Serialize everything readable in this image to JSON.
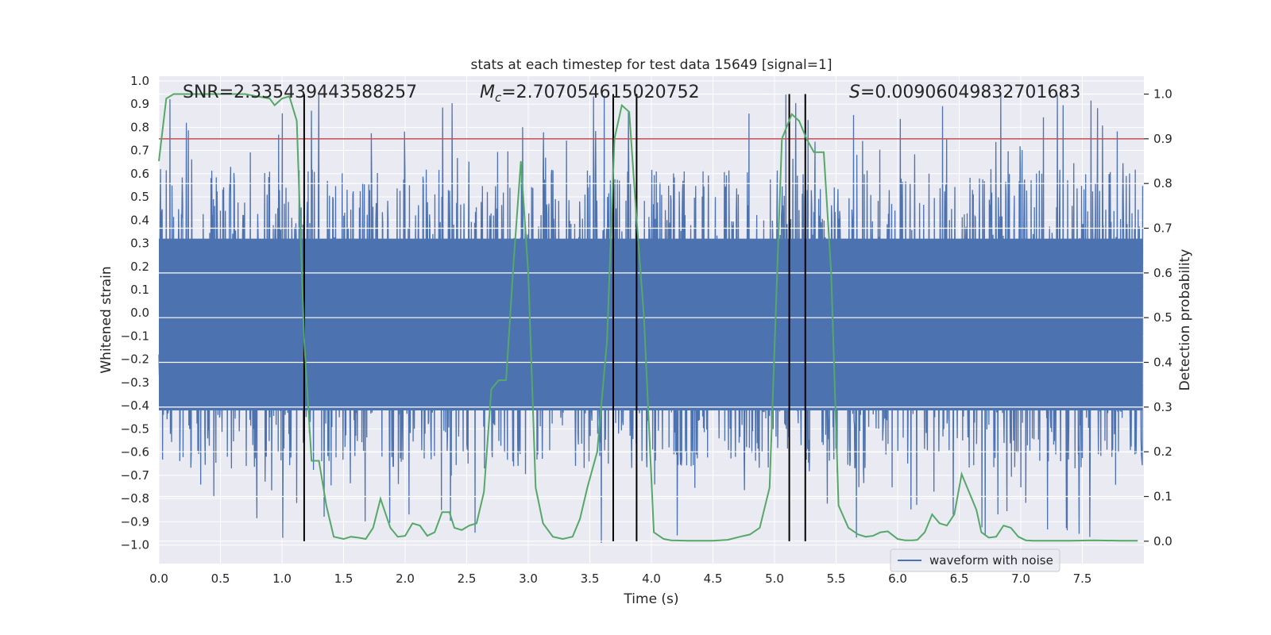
{
  "chart_data": {
    "type": "line",
    "title": "stats at each timestep for test data 15649 [signal=1]",
    "xlabel": "Time (s)",
    "ylabel": "Whitened strain",
    "y2label": "Detection probability",
    "xlim": [
      0.0,
      8.0
    ],
    "ylim": [
      -1.08,
      1.02
    ],
    "y2lim": [
      -0.05,
      1.04
    ],
    "x_ticks": [
      "0.0",
      "0.5",
      "1.0",
      "1.5",
      "2.0",
      "2.5",
      "3.0",
      "3.5",
      "4.0",
      "4.5",
      "5.0",
      "5.5",
      "6.0",
      "6.5",
      "7.0",
      "7.5"
    ],
    "y_ticks": [
      "1.0",
      "0.9",
      "0.8",
      "0.7",
      "0.6",
      "0.5",
      "0.4",
      "0.3",
      "0.2",
      "0.1",
      "0.0",
      "-0.1",
      "-0.2",
      "-0.3",
      "-0.4",
      "-0.5",
      "-0.6",
      "-0.7",
      "-0.8",
      "-0.9",
      "-1.0"
    ],
    "y2_ticks": [
      "1.0",
      "0.9",
      "0.8",
      "0.7",
      "0.6",
      "0.5",
      "0.4",
      "0.3",
      "0.2",
      "0.1",
      "0.0"
    ],
    "grid": true,
    "legend_position": "lower-right",
    "annotations": {
      "snr": "SNR=2.335439443588257",
      "mc_symbol": "M",
      "mc_sub": "c",
      "mc_value": "=2.707054615020752",
      "s_symbol": "S",
      "s_value": "=0.00906049832701683"
    },
    "series": [
      {
        "name": "waveform with noise",
        "color": "#4c72b0",
        "kind": "noise-band",
        "x_range": [
          0.0,
          7.99
        ],
        "core_range": [
          -0.42,
          0.32
        ],
        "extreme_range": [
          -1.0,
          0.95
        ]
      },
      {
        "color": "#55a868",
        "kind": "probability",
        "x": [
          0.0,
          0.06,
          0.12,
          0.2,
          0.3,
          0.4,
          0.5,
          0.6,
          0.7,
          0.8,
          0.9,
          0.94,
          1.0,
          1.06,
          1.12,
          1.18,
          1.24,
          1.3,
          1.36,
          1.42,
          1.5,
          1.56,
          1.62,
          1.68,
          1.74,
          1.8,
          1.88,
          1.94,
          2.0,
          2.06,
          2.12,
          2.18,
          2.24,
          2.3,
          2.36,
          2.4,
          2.46,
          2.52,
          2.58,
          2.64,
          2.7,
          2.76,
          2.82,
          2.88,
          2.94,
          3.0,
          3.06,
          3.12,
          3.2,
          3.28,
          3.36,
          3.42,
          3.48,
          3.56,
          3.64,
          3.7,
          3.76,
          3.82,
          3.88,
          3.94,
          4.02,
          4.1,
          4.16,
          4.3,
          4.5,
          4.62,
          4.72,
          4.8,
          4.88,
          4.96,
          5.06,
          5.14,
          5.2,
          5.26,
          5.32,
          5.4,
          5.46,
          5.52,
          5.6,
          5.68,
          5.74,
          5.8,
          5.86,
          5.92,
          6.0,
          6.06,
          6.12,
          6.16,
          6.22,
          6.28,
          6.34,
          6.4,
          6.46,
          6.52,
          6.58,
          6.64,
          6.68,
          6.74,
          6.8,
          6.86,
          6.92,
          6.98,
          7.04,
          7.1,
          7.2,
          7.4,
          7.6,
          7.8,
          7.95
        ],
        "y": [
          0.85,
          0.99,
          1.0,
          1.0,
          1.0,
          1.0,
          1.0,
          1.0,
          1.0,
          0.995,
          0.99,
          0.975,
          0.99,
          0.995,
          0.94,
          0.45,
          0.18,
          0.18,
          0.08,
          0.01,
          0.005,
          0.01,
          0.008,
          0.005,
          0.03,
          0.095,
          0.03,
          0.01,
          0.012,
          0.04,
          0.035,
          0.012,
          0.02,
          0.065,
          0.065,
          0.03,
          0.025,
          0.035,
          0.04,
          0.11,
          0.34,
          0.36,
          0.36,
          0.62,
          0.85,
          0.6,
          0.12,
          0.04,
          0.01,
          0.005,
          0.01,
          0.05,
          0.12,
          0.2,
          0.45,
          0.9,
          0.975,
          0.96,
          0.72,
          0.5,
          0.02,
          0.005,
          0.002,
          0.001,
          0.001,
          0.003,
          0.01,
          0.015,
          0.03,
          0.12,
          0.9,
          0.955,
          0.94,
          0.9,
          0.87,
          0.87,
          0.6,
          0.08,
          0.03,
          0.015,
          0.01,
          0.012,
          0.02,
          0.022,
          0.005,
          0.002,
          0.002,
          0.003,
          0.02,
          0.06,
          0.04,
          0.035,
          0.06,
          0.15,
          0.11,
          0.07,
          0.02,
          0.008,
          0.01,
          0.035,
          0.03,
          0.01,
          0.002,
          0.001,
          0.001,
          0.001,
          0.002,
          0.001,
          0.001
        ]
      }
    ],
    "threshold": {
      "value": 0.9,
      "color": "#c44e52"
    },
    "event_lines": {
      "x": [
        1.18,
        3.69,
        3.88,
        5.12,
        5.25
      ],
      "color": "#000000"
    }
  }
}
